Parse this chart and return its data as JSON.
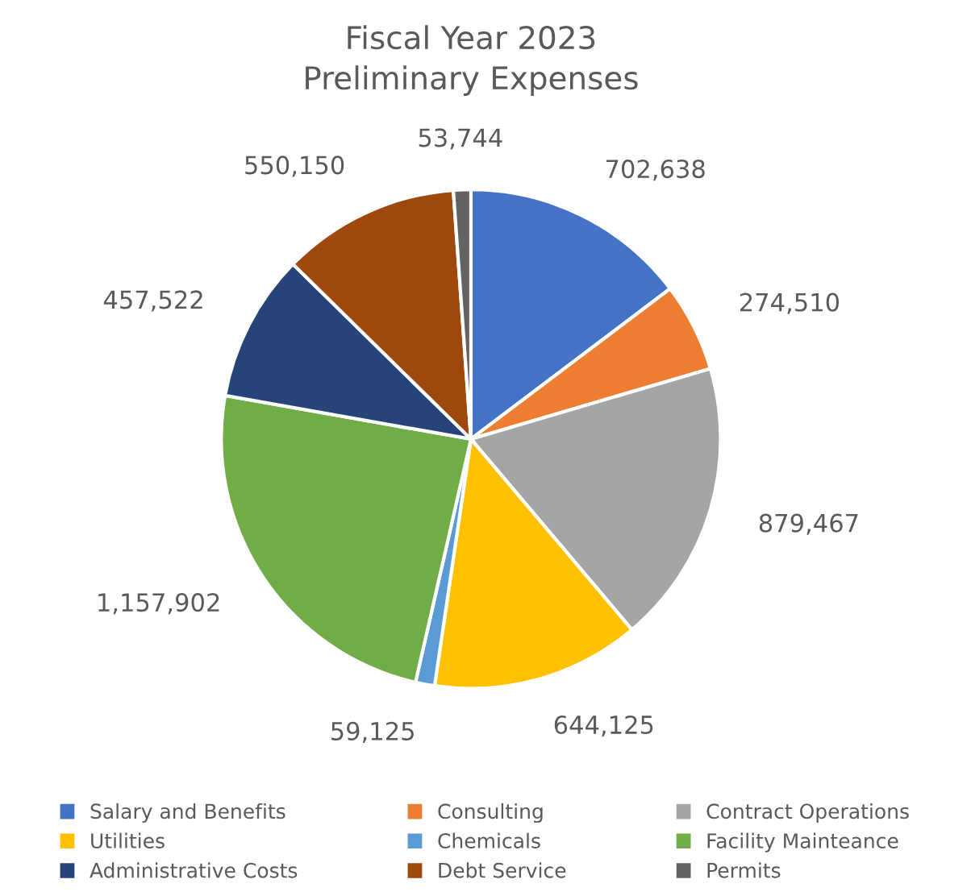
{
  "chart_data": {
    "type": "pie",
    "title": "Fiscal Year 2023",
    "subtitle": "Preliminary Expenses",
    "categories": [
      "Salary and Benefits",
      "Consulting",
      "Contract Operations",
      "Utilities",
      "Chemicals",
      "Facility Mainteance",
      "Administrative Costs",
      "Debt Service",
      "Permits"
    ],
    "values": [
      702638,
      274510,
      879467,
      644125,
      59125,
      1157902,
      457522,
      550150,
      53744
    ],
    "value_labels": [
      "702,638",
      "274,510",
      "879,467",
      "644,125",
      "59,125",
      "1,157,902",
      "457,522",
      "550,150",
      "53,744"
    ],
    "colors": [
      "#4472c4",
      "#ed7d31",
      "#a5a5a5",
      "#ffc000",
      "#5b9bd5",
      "#70ad47",
      "#264478",
      "#9e480e",
      "#636363"
    ],
    "legend": "bottom"
  }
}
